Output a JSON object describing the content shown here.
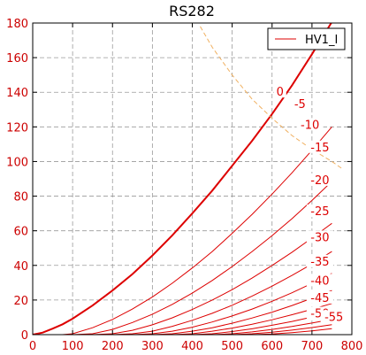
{
  "chart_data": {
    "type": "line",
    "title": "RS282",
    "xlabel": "",
    "ylabel": "",
    "xlim": [
      0,
      800
    ],
    "ylim": [
      0,
      180
    ],
    "xticks": [
      0,
      100,
      200,
      300,
      400,
      500,
      600,
      700,
      800
    ],
    "yticks": [
      0,
      20,
      40,
      60,
      80,
      100,
      120,
      140,
      160,
      180
    ],
    "grid": true,
    "legend": {
      "placement": "top-right",
      "entries": [
        "HV1_I"
      ]
    },
    "colors": {
      "curves": "#dd0000",
      "dissipation": "#f0b060",
      "axis_ticks": "#cc0000"
    },
    "x_values": [
      0,
      25,
      50,
      75,
      100,
      150,
      200,
      250,
      300,
      350,
      400,
      450,
      500,
      550,
      600,
      650,
      700,
      750
    ],
    "series": [
      {
        "label": "0",
        "values": [
          0,
          1.2,
          3.5,
          6,
          9.2,
          16.8,
          25.5,
          35,
          45.7,
          57.4,
          70,
          83.2,
          97.5,
          112,
          127.5,
          144,
          162,
          180.6
        ]
      },
      {
        "label": "-5",
        "values": [
          0,
          0,
          0,
          0,
          0.5,
          4,
          8.8,
          14.8,
          21.8,
          29.7,
          38.5,
          48,
          58.5,
          69.5,
          81.2,
          93.5,
          106.5,
          120
        ]
      },
      {
        "label": "-10",
        "values": [
          0,
          0,
          0,
          0,
          0,
          0.5,
          3,
          7,
          11.8,
          17.5,
          24,
          31.3,
          39.3,
          48,
          57.2,
          67,
          77.5,
          88.5
        ]
      },
      {
        "label": "-15",
        "values": [
          0,
          0,
          0,
          0,
          0,
          0,
          0.5,
          2.5,
          5.7,
          9.7,
          14.5,
          20,
          26,
          32.7,
          40,
          47.6,
          55.8,
          64.3
        ]
      },
      {
        "label": "-20",
        "values": [
          0,
          0,
          0,
          0,
          0,
          0,
          0,
          0.5,
          2,
          4.8,
          8.3,
          12.3,
          17,
          22.3,
          28,
          34.2,
          40.8,
          48
        ]
      },
      {
        "label": "-25",
        "values": [
          0,
          0,
          0,
          0,
          0,
          0,
          0,
          0,
          0.5,
          2,
          4.3,
          7.3,
          10.8,
          14.8,
          19.3,
          24.2,
          29.6,
          35.4
        ]
      },
      {
        "label": "-30",
        "values": [
          0,
          0,
          0,
          0,
          0,
          0,
          0,
          0,
          0,
          0.5,
          2,
          4,
          6.6,
          9.6,
          13,
          16.8,
          21,
          25.5
        ]
      },
      {
        "label": "-35",
        "values": [
          0,
          0,
          0,
          0,
          0,
          0,
          0,
          0,
          0,
          0,
          0.5,
          2,
          3.8,
          6,
          8.6,
          11.5,
          14.6,
          18
        ]
      },
      {
        "label": "-40",
        "values": [
          0,
          0,
          0,
          0,
          0,
          0,
          0,
          0,
          0,
          0,
          0,
          0.5,
          1.8,
          3.4,
          5.4,
          7.6,
          10.2,
          12.9
        ]
      },
      {
        "label": "-45",
        "values": [
          0,
          0,
          0,
          0,
          0,
          0,
          0,
          0,
          0,
          0,
          0,
          0,
          0.5,
          1.6,
          3,
          4.7,
          6.7,
          8.8
        ]
      },
      {
        "label": "-50",
        "values": [
          0,
          0,
          0,
          0,
          0,
          0,
          0,
          0,
          0,
          0,
          0,
          0,
          0,
          0.5,
          1.4,
          2.6,
          4.1,
          5.8
        ]
      },
      {
        "label": "-55",
        "values": [
          0,
          0,
          0,
          0,
          0,
          0,
          0,
          0,
          0,
          0,
          0,
          0,
          0,
          0,
          0.4,
          1.2,
          2.2,
          3.5
        ]
      }
    ],
    "dissipation_curve": {
      "x": [
        420,
        450,
        500,
        550,
        600,
        650,
        700,
        750,
        775
      ],
      "y": [
        178,
        166,
        150,
        136,
        125,
        115,
        107,
        100,
        96
      ]
    }
  }
}
